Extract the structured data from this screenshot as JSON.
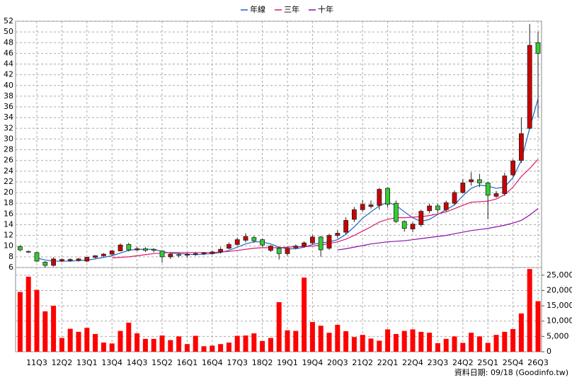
{
  "chart_data": {
    "type": "candlestick",
    "footer": "資料日期: 09/18 (Goodinfo.tw)",
    "categories": [
      null,
      null,
      "11Q3",
      null,
      null,
      "12Q2",
      null,
      null,
      "13Q1",
      null,
      null,
      "13Q4",
      null,
      null,
      "14Q3",
      null,
      null,
      "15Q2",
      null,
      null,
      "16Q1",
      null,
      null,
      "16Q4",
      null,
      null,
      "17Q3",
      null,
      null,
      "18Q2",
      null,
      null,
      "19Q1",
      null,
      null,
      "19Q4",
      null,
      null,
      "20Q3",
      null,
      null,
      "21Q2",
      null,
      null,
      "22Q1",
      null,
      null,
      "22Q4",
      null,
      null,
      "23Q3",
      null,
      null,
      "24Q2",
      null,
      null,
      "25Q1",
      null,
      null,
      "25Q4",
      null,
      null,
      "26Q3"
    ],
    "open": [
      9.9,
      9.0,
      8.8,
      7.0,
      6.4,
      7.2,
      7.3,
      7.3,
      7.2,
      7.9,
      8.2,
      8.5,
      9.1,
      10.3,
      9.3,
      9.5,
      9.4,
      9.1,
      8.0,
      8.4,
      8.3,
      8.5,
      8.6,
      8.6,
      8.9,
      9.6,
      10.3,
      11.1,
      11.6,
      11.2,
      9.2,
      9.6,
      8.6,
      9.7,
      10.0,
      10.6,
      11.7,
      9.6,
      12.0,
      12.6,
      15.0,
      16.8,
      17.4,
      17.6,
      20.8,
      18.0,
      14.6,
      13.2,
      14.0,
      16.6,
      17.5,
      16.8,
      18.0,
      20.0,
      22.0,
      22.4,
      21.8,
      19.3,
      19.8,
      23.3,
      26.0,
      32.0,
      48.0
    ],
    "close": [
      9.3,
      8.9,
      7.2,
      6.4,
      7.6,
      7.5,
      7.5,
      7.6,
      7.9,
      8.2,
      8.5,
      9.1,
      10.2,
      9.3,
      9.5,
      9.2,
      9.2,
      8.0,
      8.5,
      8.3,
      8.5,
      8.6,
      8.7,
      8.9,
      9.4,
      10.3,
      11.2,
      11.8,
      11.0,
      10.2,
      10.0,
      8.6,
      9.6,
      10.0,
      10.6,
      11.7,
      9.3,
      12.0,
      12.4,
      14.8,
      16.8,
      17.8,
      17.7,
      20.6,
      17.8,
      14.6,
      13.3,
      14.1,
      16.5,
      17.5,
      16.8,
      18.1,
      20.0,
      21.8,
      22.4,
      21.8,
      19.5,
      19.8,
      23.1,
      25.9,
      31.0,
      47.5,
      46.0
    ],
    "high": [
      10.2,
      9.2,
      8.9,
      7.2,
      7.9,
      7.7,
      7.7,
      7.8,
      8.0,
      8.3,
      8.7,
      9.3,
      10.5,
      10.6,
      9.9,
      9.8,
      9.6,
      9.2,
      8.8,
      8.7,
      8.8,
      8.9,
      8.9,
      9.2,
      9.8,
      10.7,
      11.6,
      12.4,
      11.9,
      11.4,
      10.2,
      9.8,
      9.9,
      10.3,
      10.9,
      12.1,
      11.9,
      12.3,
      13.0,
      15.4,
      17.3,
      18.6,
      18.5,
      20.9,
      21.0,
      18.5,
      14.8,
      14.5,
      16.8,
      17.9,
      17.9,
      18.5,
      20.4,
      22.5,
      23.8,
      23.5,
      22.0,
      20.3,
      23.7,
      26.2,
      34.0,
      51.5,
      50.0
    ],
    "low": [
      9.0,
      8.7,
      7.0,
      6.0,
      6.2,
      7.0,
      7.1,
      7.1,
      7.0,
      7.7,
      8.0,
      8.3,
      9.0,
      9.0,
      9.1,
      8.9,
      8.8,
      6.9,
      7.6,
      7.9,
      7.8,
      8.2,
      8.3,
      8.4,
      8.6,
      9.4,
      10.1,
      10.7,
      10.6,
      9.9,
      8.9,
      7.5,
      8.2,
      9.4,
      9.7,
      10.3,
      8.0,
      9.3,
      11.5,
      12.2,
      14.5,
      16.4,
      17.0,
      16.8,
      17.2,
      14.3,
      12.7,
      12.6,
      13.6,
      16.2,
      16.2,
      16.4,
      17.6,
      19.8,
      21.3,
      21.0,
      15.0,
      19.0,
      19.4,
      23.0,
      25.5,
      31.8,
      34.0
    ],
    "up_color": "#cc0000",
    "down_color": "#33cc33",
    "series": [
      {
        "name": "年線",
        "color": "#1e64c8",
        "values": [
          null,
          null,
          7.8,
          7.4,
          7.2,
          7.2,
          7.2,
          7.3,
          7.4,
          7.6,
          7.9,
          8.2,
          8.7,
          9.2,
          9.4,
          9.4,
          9.4,
          9.0,
          8.7,
          8.6,
          8.5,
          8.4,
          8.5,
          8.6,
          8.8,
          9.2,
          9.8,
          10.4,
          10.8,
          10.8,
          10.4,
          9.8,
          9.5,
          9.5,
          9.8,
          10.3,
          10.6,
          10.8,
          11.2,
          12.2,
          13.6,
          15.2,
          16.4,
          17.5,
          18.2,
          17.6,
          16.4,
          15.3,
          14.6,
          15.0,
          15.9,
          16.8,
          17.7,
          19.4,
          20.8,
          21.4,
          21.2,
          20.8,
          21.0,
          22.8,
          26.0,
          32.0,
          37.5
        ]
      },
      {
        "name": "三年",
        "color": "#e0186e",
        "values": [
          null,
          null,
          null,
          null,
          null,
          null,
          null,
          null,
          null,
          null,
          null,
          7.8,
          7.9,
          8.0,
          8.2,
          8.4,
          8.6,
          8.7,
          8.8,
          8.8,
          8.8,
          8.8,
          8.8,
          8.8,
          8.9,
          9.0,
          9.2,
          9.4,
          9.6,
          9.7,
          9.7,
          9.7,
          9.8,
          9.9,
          9.9,
          10.0,
          10.2,
          10.5,
          10.8,
          11.3,
          12.0,
          12.8,
          13.6,
          14.5,
          15.0,
          15.3,
          15.3,
          15.4,
          15.5,
          15.7,
          16.0,
          16.4,
          17.0,
          17.6,
          18.2,
          18.3,
          18.4,
          18.8,
          19.6,
          21.0,
          23.0,
          24.5,
          26.2
        ]
      },
      {
        "name": "十年",
        "color": "#8a10a8",
        "values": [
          null,
          null,
          null,
          null,
          null,
          null,
          null,
          null,
          null,
          null,
          null,
          null,
          null,
          null,
          null,
          null,
          null,
          null,
          null,
          null,
          null,
          null,
          null,
          null,
          null,
          null,
          null,
          null,
          null,
          null,
          null,
          null,
          null,
          null,
          null,
          null,
          null,
          null,
          9.3,
          9.5,
          9.8,
          10.1,
          10.4,
          10.6,
          10.8,
          10.9,
          11.0,
          11.2,
          11.4,
          11.6,
          11.8,
          12.0,
          12.3,
          12.6,
          12.9,
          13.1,
          13.3,
          13.6,
          13.9,
          14.3,
          14.8,
          15.8,
          17.0
        ]
      }
    ],
    "ylim": [
      6,
      52
    ],
    "yticks": [
      6,
      8,
      10,
      12,
      14,
      16,
      18,
      20,
      22,
      24,
      26,
      28,
      30,
      32,
      34,
      36,
      38,
      40,
      42,
      44,
      46,
      48,
      50,
      52
    ],
    "volume": {
      "color": "#ff0000",
      "values": [
        19500,
        24500,
        20200,
        13200,
        15000,
        4500,
        7500,
        6500,
        7800,
        5800,
        3000,
        2700,
        6800,
        9500,
        6000,
        4200,
        4200,
        5300,
        3800,
        5000,
        2500,
        5200,
        1800,
        2000,
        2500,
        3000,
        5200,
        5300,
        6000,
        3500,
        4500,
        16200,
        7000,
        6800,
        24200,
        9700,
        8500,
        6200,
        8800,
        6700,
        4800,
        5500,
        4300,
        3600,
        7300,
        5800,
        6800,
        7300,
        6500,
        6200,
        2800,
        4200,
        5000,
        2900,
        6200,
        5000,
        2900,
        5500,
        6500,
        7400,
        12500,
        27000,
        16500
      ],
      "ylim": [
        0,
        27500
      ],
      "yticks": [
        0,
        {
          "value": 5000,
          "label": "5,000"
        },
        {
          "value": 10000,
          "label": "10,000"
        },
        {
          "value": 15000,
          "label": "15,000"
        },
        {
          "value": 20000,
          "label": "20,000"
        },
        {
          "value": 25000,
          "label": "25,000"
        }
      ]
    },
    "grid": true
  }
}
